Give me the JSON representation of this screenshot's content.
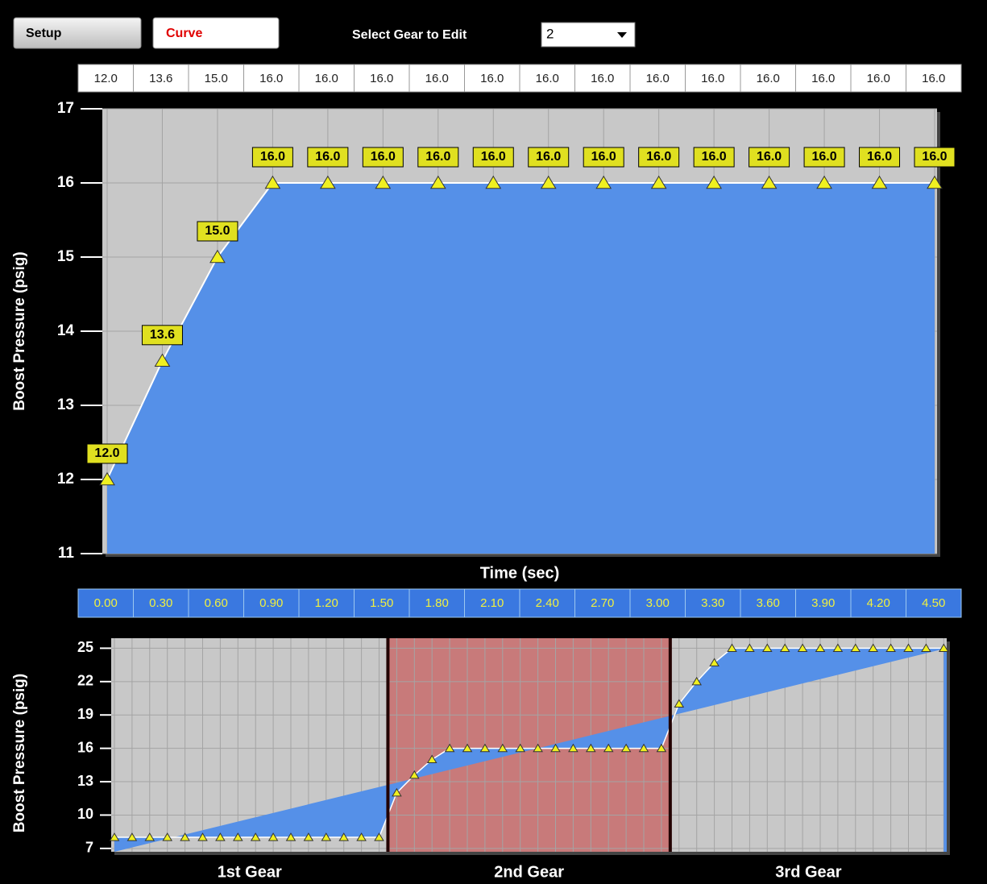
{
  "controls": {
    "setup": "Setup",
    "curve": "Curve",
    "gear_select_label": "Select Gear to Edit",
    "gear_selected": "2"
  },
  "chart_data": [
    {
      "type": "line",
      "y_label": "Boost Pressure (psig)",
      "x_label": "Time (sec)",
      "x": [
        0,
        0.3,
        0.6,
        0.9,
        1.2,
        1.5,
        1.8,
        2.1,
        2.4,
        2.7,
        3.0,
        3.3,
        3.6,
        3.9,
        4.2,
        4.5
      ],
      "x_labels": [
        "0.00",
        "0.30",
        "0.60",
        "0.90",
        "1.20",
        "1.50",
        "1.80",
        "2.10",
        "2.40",
        "2.70",
        "3.00",
        "3.30",
        "3.60",
        "3.90",
        "4.20",
        "4.50"
      ],
      "xlim": [
        0,
        4.5
      ],
      "values": [
        12,
        13.6,
        15,
        16,
        16,
        16,
        16,
        16,
        16,
        16,
        16,
        16,
        16,
        16,
        16,
        16
      ],
      "value_labels": [
        "12.0",
        "13.6",
        "15.0",
        "16.0",
        "16.0",
        "16.0",
        "16.0",
        "16.0",
        "16.0",
        "16.0",
        "16.0",
        "16.0",
        "16.0",
        "16.0",
        "16.0",
        "16.0"
      ],
      "ylim": [
        11,
        17
      ],
      "yticks": [
        11,
        12,
        13,
        14,
        15,
        16,
        17
      ],
      "grid": true,
      "color": "#ffffff",
      "area_color": "#5590e8",
      "marker_color": "#f0f020",
      "background": "#c8c8c8"
    },
    {
      "type": "segmented_line",
      "y_label": "Boost Pressure (psig)",
      "ylim": [
        6.7,
        25.9
      ],
      "yticks": [
        7,
        10,
        13,
        16,
        19,
        22,
        25
      ],
      "grid": true,
      "color": "#ffffff",
      "area_color": "#5590e8",
      "marker_color": "#f0f020",
      "series": [
        {
          "name": "1st Gear",
          "background": "#c8c8c8",
          "values": [
            8,
            8,
            8,
            8,
            8,
            8,
            8,
            8,
            8,
            8,
            8,
            8,
            8,
            8,
            8,
            8
          ]
        },
        {
          "name": "2nd Gear",
          "background": "#c87a7a",
          "values": [
            12,
            13.6,
            15,
            16,
            16,
            16,
            16,
            16,
            16,
            16,
            16,
            16,
            16,
            16,
            16,
            16
          ]
        },
        {
          "name": "3rd Gear",
          "background": "#c8c8c8",
          "values": [
            20,
            22,
            23.7,
            25,
            25,
            25,
            25,
            25,
            25,
            25,
            25,
            25,
            25,
            25,
            25,
            25
          ]
        }
      ]
    }
  ]
}
